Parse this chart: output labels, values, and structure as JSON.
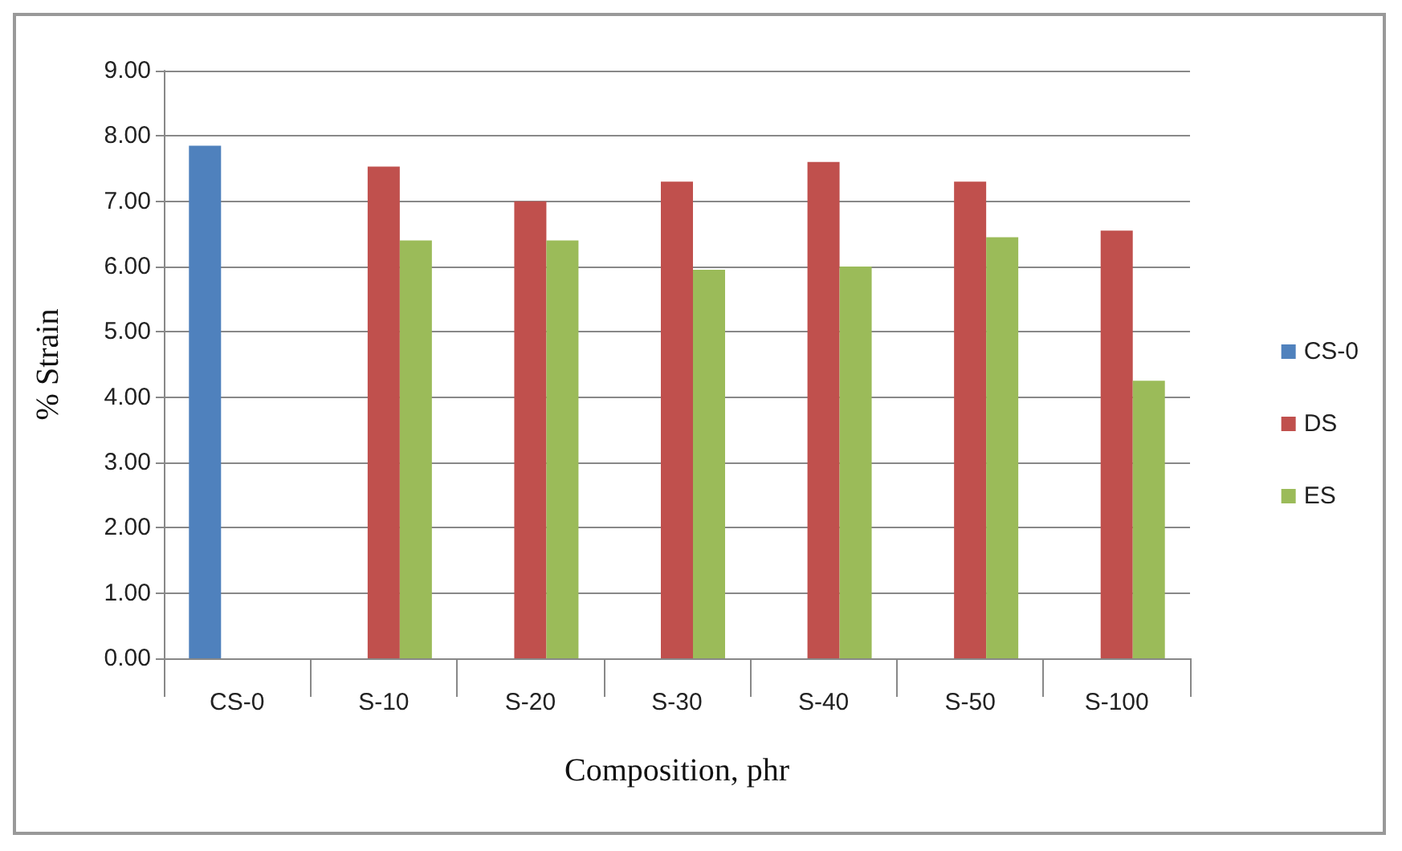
{
  "chart_data": {
    "type": "bar",
    "xlabel": "Composition, phr",
    "ylabel": "% Strain",
    "categories": [
      "CS-0",
      "S-10",
      "S-20",
      "S-30",
      "S-40",
      "S-50",
      "S-100"
    ],
    "series": [
      {
        "name": "CS-0",
        "color": "#4f81bd",
        "values": [
          7.85,
          null,
          null,
          null,
          null,
          null,
          null
        ]
      },
      {
        "name": "DS",
        "color": "#c0504d",
        "values": [
          null,
          7.53,
          7.0,
          7.3,
          7.6,
          7.3,
          6.55
        ]
      },
      {
        "name": "ES",
        "color": "#9bbb59",
        "values": [
          null,
          6.4,
          6.4,
          5.95,
          6.0,
          6.45,
          4.25
        ]
      }
    ],
    "ylim": [
      0,
      9
    ],
    "yticks": [
      {
        "value": 0,
        "label": "0.00"
      },
      {
        "value": 1,
        "label": "1.00"
      },
      {
        "value": 2,
        "label": "2.00"
      },
      {
        "value": 3,
        "label": "3.00"
      },
      {
        "value": 4,
        "label": "4.00"
      },
      {
        "value": 5,
        "label": "5.00"
      },
      {
        "value": 6,
        "label": "6.00"
      },
      {
        "value": 7,
        "label": "7.00"
      },
      {
        "value": 8,
        "label": "8.00"
      },
      {
        "value": 9,
        "label": "9.00"
      }
    ],
    "grid": "y",
    "legend": "right"
  }
}
